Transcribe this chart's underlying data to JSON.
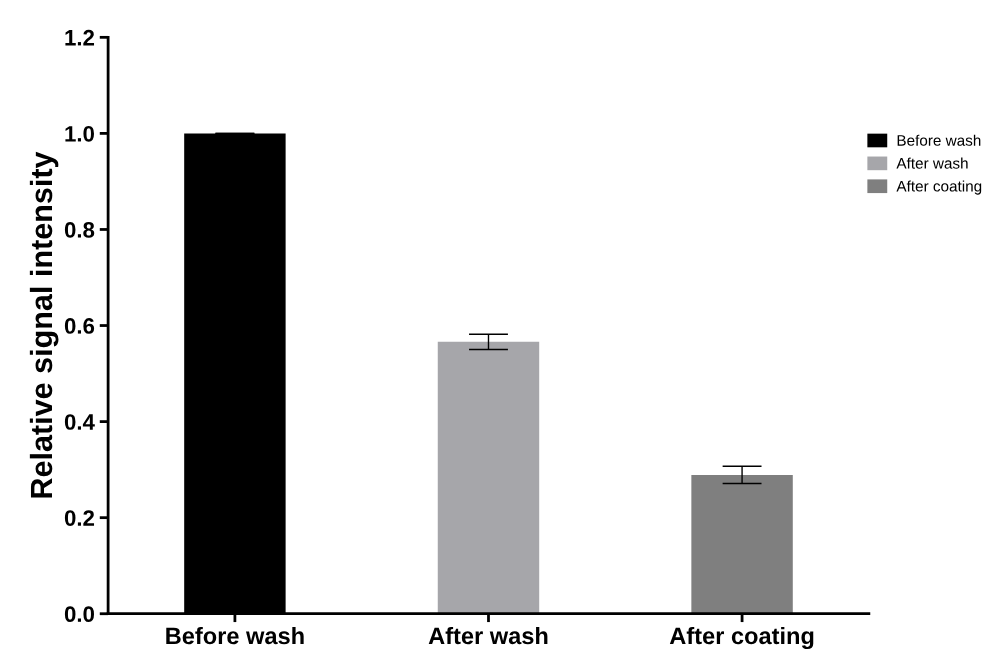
{
  "chart_data": {
    "type": "bar",
    "ylabel": "Relative signal intensity",
    "categories": [
      "Before wash",
      "After wash",
      "After coating"
    ],
    "series": [
      {
        "name": "Before wash",
        "color": "#000000",
        "values": [
          1.0,
          null,
          null
        ],
        "errors": [
          0,
          null,
          null
        ]
      },
      {
        "name": "After wash",
        "color": "#a6a6aa",
        "values": [
          null,
          0.566,
          null
        ],
        "errors": [
          null,
          0.016,
          null
        ]
      },
      {
        "name": "After coating",
        "color": "#7f7f7f",
        "values": [
          null,
          null,
          0.289
        ],
        "errors": [
          null,
          null,
          0.018
        ]
      }
    ],
    "ylim": [
      0,
      1.2
    ],
    "yticks": [
      {
        "value": 0,
        "label": "0.0"
      },
      {
        "value": 0.2,
        "label": "0.2"
      },
      {
        "value": 0.4,
        "label": "0.4"
      },
      {
        "value": 0.6,
        "label": "0.6"
      },
      {
        "value": 0.8,
        "label": "0.8"
      },
      {
        "value": 1.0,
        "label": "1.0"
      },
      {
        "value": 1.2,
        "label": "1.2"
      }
    ],
    "legend": "right",
    "grid": false
  }
}
